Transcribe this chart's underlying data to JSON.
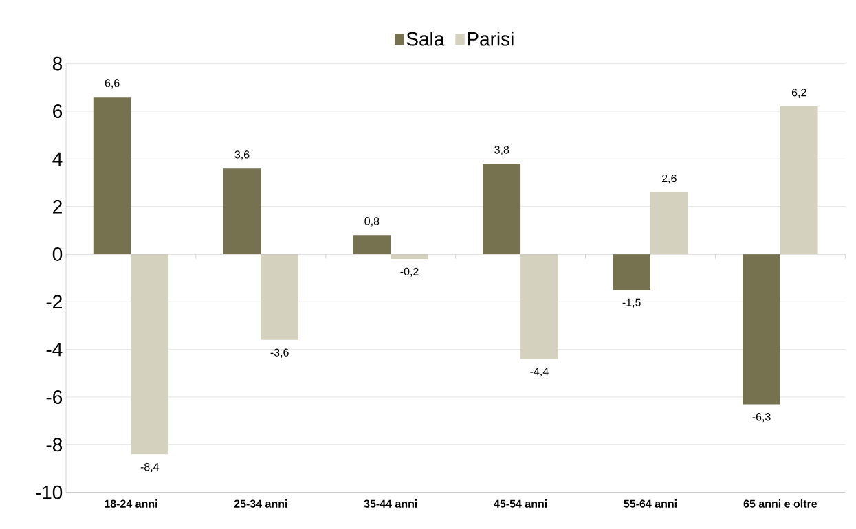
{
  "chart_data": {
    "type": "bar",
    "categories": [
      "18-24 anni",
      "25-34 anni",
      "35-44 anni",
      "45-54 anni",
      "55-64 anni",
      "65 anni e oltre"
    ],
    "series": [
      {
        "name": "Sala",
        "color": "#76714f",
        "values": [
          6.6,
          3.6,
          0.8,
          3.8,
          -1.5,
          -6.3
        ],
        "value_labels": [
          "6,6",
          "3,6",
          "0,8",
          "3,8",
          "-1,5",
          "-6,3"
        ]
      },
      {
        "name": "Parisi",
        "color": "#d4d2bf",
        "values": [
          -8.4,
          -3.6,
          -0.2,
          -4.4,
          2.6,
          6.2
        ],
        "value_labels": [
          "-8,4",
          "-3,6",
          "-0,2",
          "-4,4",
          "2,6",
          "6,2"
        ]
      }
    ],
    "ylim": [
      -10,
      8
    ],
    "yticks": [
      -10,
      -8,
      -6,
      -4,
      -2,
      0,
      2,
      4,
      6,
      8
    ],
    "grid": "y",
    "legend": "top"
  }
}
